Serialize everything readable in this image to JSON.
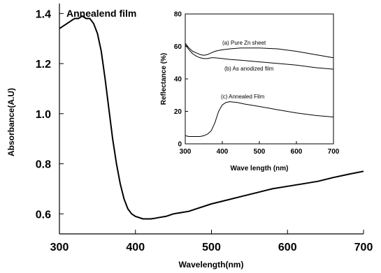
{
  "chart_data": [
    {
      "type": "line",
      "title": "Annealend film",
      "xlabel": "Wavelength(nm)",
      "ylabel": "Absorbance(A.U)",
      "xlim": [
        300,
        700
      ],
      "ylim": [
        0.52,
        1.44
      ],
      "x_ticks": [
        300,
        400,
        500,
        600,
        700
      ],
      "y_ticks": [
        0.6,
        0.8,
        1.0,
        1.2,
        1.4
      ],
      "x_tick_labels": [
        "300",
        "400",
        "500",
        "600",
        "700"
      ],
      "y_tick_labels": [
        "0.6",
        "0.8",
        "1.0",
        "1.2",
        "1.4"
      ],
      "grid": false,
      "color": "#000000",
      "series": [
        {
          "x": [
            300,
            305,
            310,
            315,
            320,
            325,
            330,
            335,
            340,
            345,
            350,
            355,
            360,
            365,
            370,
            375,
            380,
            385,
            390,
            395,
            400,
            405,
            410,
            415,
            420,
            425,
            430,
            440,
            450,
            460,
            470,
            480,
            500,
            520,
            540,
            560,
            580,
            600,
            620,
            640,
            660,
            680,
            700
          ],
          "values": [
            1.34,
            1.35,
            1.36,
            1.37,
            1.38,
            1.38,
            1.39,
            1.38,
            1.38,
            1.36,
            1.32,
            1.25,
            1.14,
            1.02,
            0.9,
            0.8,
            0.72,
            0.66,
            0.62,
            0.6,
            0.59,
            0.585,
            0.58,
            0.58,
            0.58,
            0.582,
            0.585,
            0.59,
            0.6,
            0.605,
            0.61,
            0.62,
            0.64,
            0.655,
            0.67,
            0.685,
            0.7,
            0.71,
            0.72,
            0.73,
            0.745,
            0.758,
            0.77
          ]
        }
      ]
    },
    {
      "type": "line",
      "xlabel": "Wave length (nm)",
      "ylabel": "Reflectance (%)",
      "xlim": [
        300,
        700
      ],
      "ylim": [
        0,
        80
      ],
      "x_ticks": [
        300,
        400,
        500,
        600,
        700
      ],
      "y_ticks": [
        0,
        20,
        40,
        60,
        80
      ],
      "x_tick_labels": [
        "300",
        "400",
        "500",
        "600",
        "700"
      ],
      "y_tick_labels": [
        "0",
        "20",
        "40",
        "60",
        "80"
      ],
      "grid": false,
      "color": "#000000",
      "series": [
        {
          "name": "(a) Pure Zn sheet",
          "x": [
            300,
            310,
            320,
            330,
            340,
            350,
            360,
            370,
            380,
            390,
            400,
            420,
            450,
            500,
            550,
            600,
            650,
            700
          ],
          "values": [
            62,
            59,
            57,
            56,
            55,
            54.5,
            55,
            56,
            57,
            57.5,
            58,
            58.5,
            59,
            59,
            58.5,
            57,
            55,
            53
          ]
        },
        {
          "name": "(b) As anodized film",
          "x": [
            300,
            310,
            320,
            330,
            340,
            350,
            360,
            370,
            380,
            400,
            420,
            450,
            500,
            550,
            600,
            650,
            700
          ],
          "values": [
            61,
            58,
            55.5,
            54,
            53,
            52.5,
            52.5,
            53,
            53,
            52.5,
            52,
            51.5,
            50.5,
            49.5,
            48.5,
            47,
            46
          ]
        },
        {
          "name": "(c) Annealed Film",
          "x": [
            300,
            310,
            320,
            330,
            340,
            350,
            360,
            370,
            380,
            390,
            400,
            410,
            420,
            440,
            460,
            500,
            550,
            600,
            650,
            700
          ],
          "values": [
            5,
            4.5,
            4.5,
            4.5,
            4.5,
            5,
            6,
            8,
            13,
            20,
            24,
            25.5,
            26,
            25.5,
            24.5,
            23,
            21,
            19,
            17.5,
            16.5
          ]
        }
      ]
    }
  ]
}
